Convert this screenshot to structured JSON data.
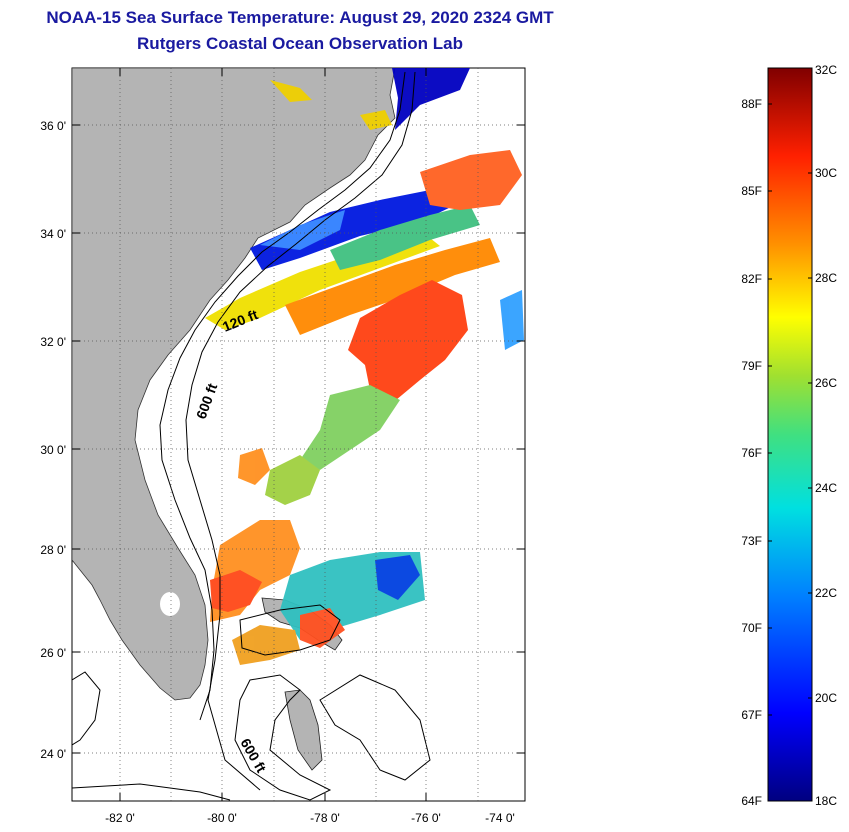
{
  "header": {
    "title": "NOAA-15 Sea Surface Temperature:  August 29, 2020 2324 GMT",
    "subtitle": "Rutgers Coastal Ocean Observation Lab"
  },
  "map": {
    "lat_labels": [
      {
        "lat": 36,
        "label": "36 0'"
      },
      {
        "lat": 34,
        "label": "34 0'"
      },
      {
        "lat": 32,
        "label": "32 0'"
      },
      {
        "lat": 30,
        "label": "30 0'"
      },
      {
        "lat": 28,
        "label": "28 0'"
      },
      {
        "lat": 26,
        "label": "26 0'"
      },
      {
        "lat": 24,
        "label": "24 0'"
      }
    ],
    "lon_labels": [
      {
        "lon": -82,
        "label": "-82 0'"
      },
      {
        "lon": -80,
        "label": "-80 0'"
      },
      {
        "lon": -78,
        "label": "-78 0'"
      },
      {
        "lon": -76,
        "label": "-76 0'"
      },
      {
        "lon": -74,
        "label": "-74 0'"
      }
    ],
    "lon_range": [
      -83,
      -73
    ],
    "lat_range": [
      23,
      37
    ],
    "contour_labels": [
      "120 ft",
      "600 ft",
      "600 ft"
    ],
    "land_color": "#b4b4b4"
  },
  "colorbar": {
    "celsius_labels": [
      "32C",
      "30C",
      "28C",
      "26C",
      "24C",
      "22C",
      "20C",
      "18C"
    ],
    "fahrenheit_labels": [
      "88F",
      "85F",
      "82F",
      "79F",
      "76F",
      "73F",
      "70F",
      "67F",
      "64F"
    ],
    "range_c": [
      18,
      32
    ]
  }
}
